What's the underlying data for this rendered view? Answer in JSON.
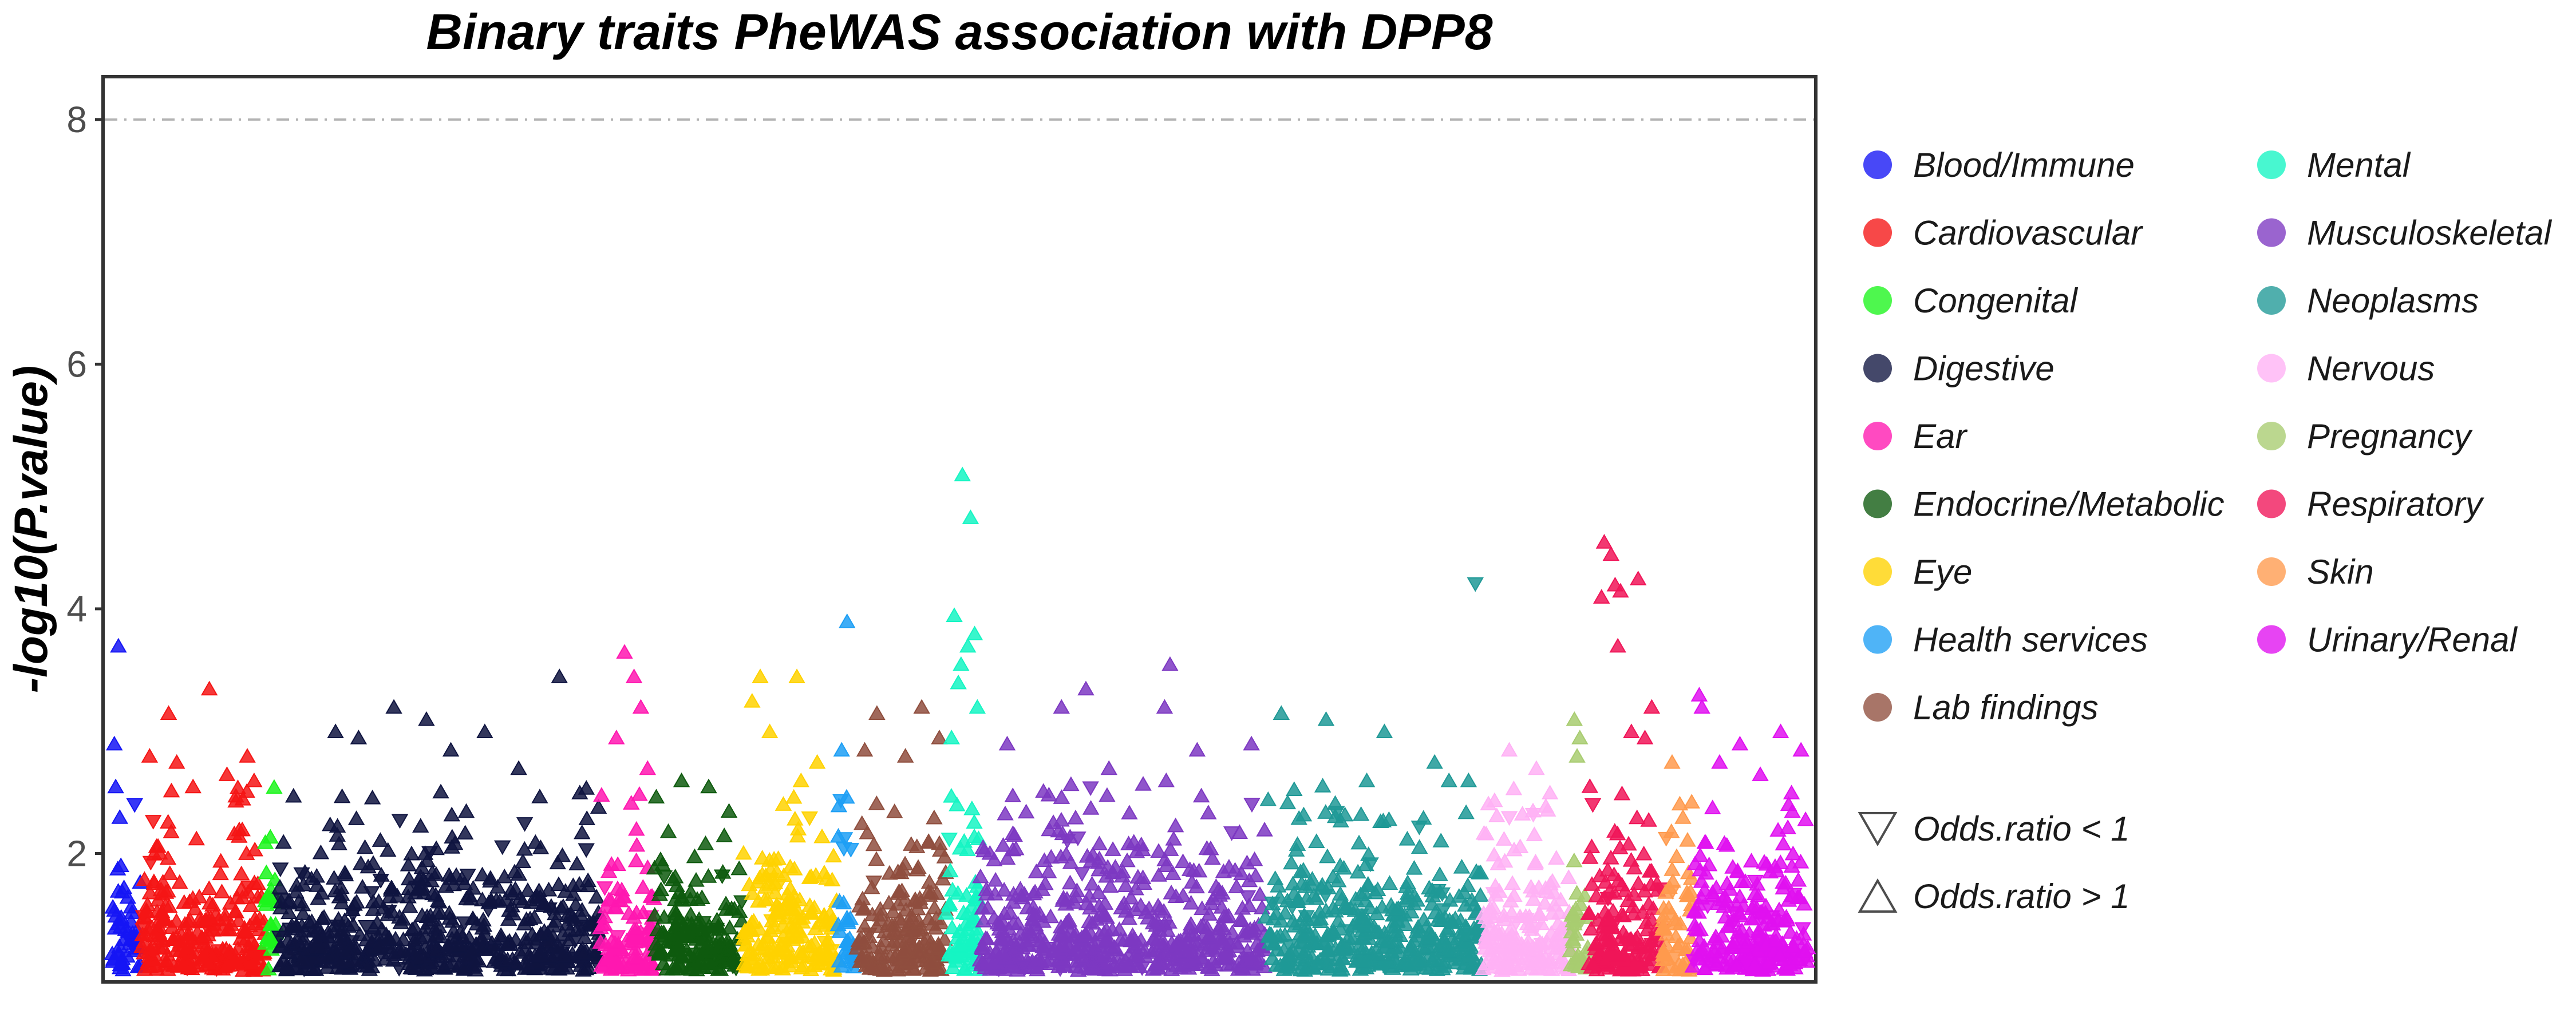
{
  "chart_data": {
    "type": "scatter",
    "title": "Binary traits PheWAS association with DPP8",
    "xlabel": "",
    "ylabel": "-log10(P.value)",
    "ylim": [
      0.95,
      8.35
    ],
    "yticks": [
      2,
      4,
      6,
      8
    ],
    "threshold_line": 8,
    "grid": false,
    "legend_position": "right",
    "categories": [
      {
        "name": "Blood/Immune",
        "color": "#1515F5",
        "range": [
          0,
          22
        ],
        "count": 50,
        "peaks": [
          [
            5,
            3.7,
            "up"
          ],
          [
            2,
            2.9,
            "up"
          ],
          [
            3,
            2.55,
            "up"
          ],
          [
            6,
            2.3,
            "up"
          ]
        ]
      },
      {
        "name": "Cardiovascular",
        "color": "#F51515",
        "range": [
          22,
          113
        ],
        "count": 260,
        "peaks": [
          [
            72,
            3.35,
            "up"
          ],
          [
            42,
            3.15,
            "up"
          ],
          [
            48,
            2.75,
            "up"
          ],
          [
            100,
            2.8,
            "up"
          ],
          [
            60,
            2.55,
            "up"
          ],
          [
            85,
            2.65,
            "up"
          ],
          [
            28,
            2.8,
            "up"
          ],
          [
            105,
            2.6,
            "up"
          ]
        ]
      },
      {
        "name": "Congenital",
        "color": "#1CF51C",
        "range": [
          113,
          123
        ],
        "count": 25,
        "peaks": []
      },
      {
        "name": "Digestive",
        "color": "#0F1440",
        "range": [
          123,
          360
        ],
        "count": 620,
        "peaks": [
          [
            208,
            3.2,
            "up"
          ],
          [
            232,
            3.1,
            "up"
          ],
          [
            330,
            3.45,
            "up"
          ],
          [
            165,
            3.0,
            "up"
          ],
          [
            275,
            3.0,
            "up"
          ],
          [
            182,
            2.95,
            "up"
          ],
          [
            250,
            2.85,
            "up"
          ],
          [
            300,
            2.7,
            "up"
          ],
          [
            345,
            2.5,
            "up"
          ]
        ]
      },
      {
        "name": "Ear",
        "color": "#FF17B0",
        "range": [
          360,
          400
        ],
        "count": 110,
        "peaks": [
          [
            378,
            3.65,
            "up"
          ],
          [
            385,
            3.45,
            "up"
          ],
          [
            390,
            3.2,
            "up"
          ],
          [
            372,
            2.95,
            "up"
          ],
          [
            395,
            2.7,
            "up"
          ]
        ]
      },
      {
        "name": "Endocrine/Metabolic",
        "color": "#0E5A0E",
        "range": [
          400,
          465
        ],
        "count": 180,
        "peaks": [
          [
            420,
            2.6,
            "up"
          ],
          [
            440,
            2.55,
            "up"
          ],
          [
            455,
            2.35,
            "up"
          ]
        ]
      },
      {
        "name": "Eye",
        "color": "#FFD200",
        "range": [
          465,
          535
        ],
        "count": 190,
        "peaks": [
          [
            478,
            3.45,
            "up"
          ],
          [
            505,
            3.45,
            "up"
          ],
          [
            472,
            3.25,
            "up"
          ],
          [
            485,
            3.0,
            "up"
          ],
          [
            520,
            2.75,
            "up"
          ]
        ]
      },
      {
        "name": "Health services",
        "color": "#1D9FF5",
        "range": [
          535,
          548
        ],
        "count": 32,
        "peaks": [
          [
            542,
            3.9,
            "up"
          ],
          [
            538,
            2.85,
            "up"
          ]
        ]
      },
      {
        "name": "Lab findings",
        "color": "#8F4E3E",
        "range": [
          548,
          615
        ],
        "count": 180,
        "peaks": [
          [
            597,
            3.2,
            "up"
          ],
          [
            564,
            3.15,
            "up"
          ],
          [
            610,
            2.95,
            "up"
          ],
          [
            555,
            2.85,
            "up"
          ],
          [
            585,
            2.8,
            "up"
          ]
        ]
      },
      {
        "name": "Mental",
        "color": "#15F5C3",
        "range": [
          615,
          640
        ],
        "count": 70,
        "peaks": [
          [
            627,
            5.1,
            "up"
          ],
          [
            633,
            4.75,
            "up"
          ],
          [
            621,
            3.95,
            "up"
          ],
          [
            636,
            3.8,
            "up"
          ],
          [
            626,
            3.55,
            "up"
          ],
          [
            631,
            3.7,
            "up"
          ],
          [
            624,
            3.4,
            "up"
          ],
          [
            638,
            3.2,
            "up"
          ],
          [
            619,
            2.95,
            "up"
          ]
        ]
      },
      {
        "name": "Musculoskeletal",
        "color": "#7D38C2",
        "range": [
          640,
          850
        ],
        "count": 560,
        "peaks": [
          [
            780,
            3.55,
            "up"
          ],
          [
            718,
            3.35,
            "up"
          ],
          [
            776,
            3.2,
            "up"
          ],
          [
            700,
            3.2,
            "up"
          ],
          [
            660,
            2.9,
            "up"
          ],
          [
            800,
            2.85,
            "up"
          ],
          [
            840,
            2.9,
            "up"
          ],
          [
            735,
            2.7,
            "up"
          ]
        ]
      },
      {
        "name": "Neoplasms",
        "color": "#1F9996",
        "range": [
          850,
          1010
        ],
        "count": 430,
        "peaks": [
          [
            1005,
            4.2,
            "down"
          ],
          [
            862,
            3.15,
            "up"
          ],
          [
            895,
            3.1,
            "up"
          ],
          [
            938,
            3.0,
            "up"
          ],
          [
            925,
            2.6,
            "up"
          ],
          [
            975,
            2.75,
            "up"
          ],
          [
            1000,
            2.6,
            "up"
          ]
        ]
      },
      {
        "name": "Nervous",
        "color": "#FFB1F5",
        "range": [
          1010,
          1075
        ],
        "count": 180,
        "peaks": [
          [
            1030,
            2.85,
            "up"
          ],
          [
            1050,
            2.7,
            "up"
          ],
          [
            1060,
            2.5,
            "up"
          ]
        ]
      },
      {
        "name": "Pregnancy",
        "color": "#A8CC70",
        "range": [
          1075,
          1088
        ],
        "count": 30,
        "peaks": [
          [
            1078,
            3.1,
            "up"
          ],
          [
            1082,
            2.95,
            "up"
          ],
          [
            1080,
            2.8,
            "up"
          ]
        ]
      },
      {
        "name": "Respiratory",
        "color": "#F01558",
        "range": [
          1088,
          1143
        ],
        "count": 160,
        "peaks": [
          [
            1100,
            4.55,
            "up"
          ],
          [
            1105,
            4.45,
            "up"
          ],
          [
            1125,
            4.25,
            "up"
          ],
          [
            1108,
            4.2,
            "up"
          ],
          [
            1112,
            4.15,
            "up"
          ],
          [
            1098,
            4.1,
            "up"
          ],
          [
            1110,
            3.7,
            "up"
          ],
          [
            1135,
            3.2,
            "up"
          ],
          [
            1120,
            3.0,
            "up"
          ],
          [
            1130,
            2.95,
            "up"
          ]
        ]
      },
      {
        "name": "Skin",
        "color": "#FF9A4D",
        "range": [
          1143,
          1165
        ],
        "count": 55,
        "peaks": [
          [
            1150,
            2.75,
            "up"
          ],
          [
            1158,
            2.3,
            "up"
          ]
        ]
      },
      {
        "name": "Urinary/Renal",
        "color": "#E010F0",
        "range": [
          1165,
          1250
        ],
        "count": 240,
        "peaks": [
          [
            1170,
            3.3,
            "up"
          ],
          [
            1172,
            3.2,
            "up"
          ],
          [
            1230,
            3.0,
            "up"
          ],
          [
            1200,
            2.9,
            "up"
          ],
          [
            1185,
            2.75,
            "up"
          ],
          [
            1245,
            2.85,
            "up"
          ],
          [
            1215,
            2.65,
            "up"
          ],
          [
            1238,
            2.5,
            "up"
          ]
        ]
      }
    ],
    "shape_legend": [
      {
        "label": "Odds.ratio < 1",
        "shape": "triangle-down"
      },
      {
        "label": "Odds.ratio > 1",
        "shape": "triangle-up"
      }
    ]
  }
}
